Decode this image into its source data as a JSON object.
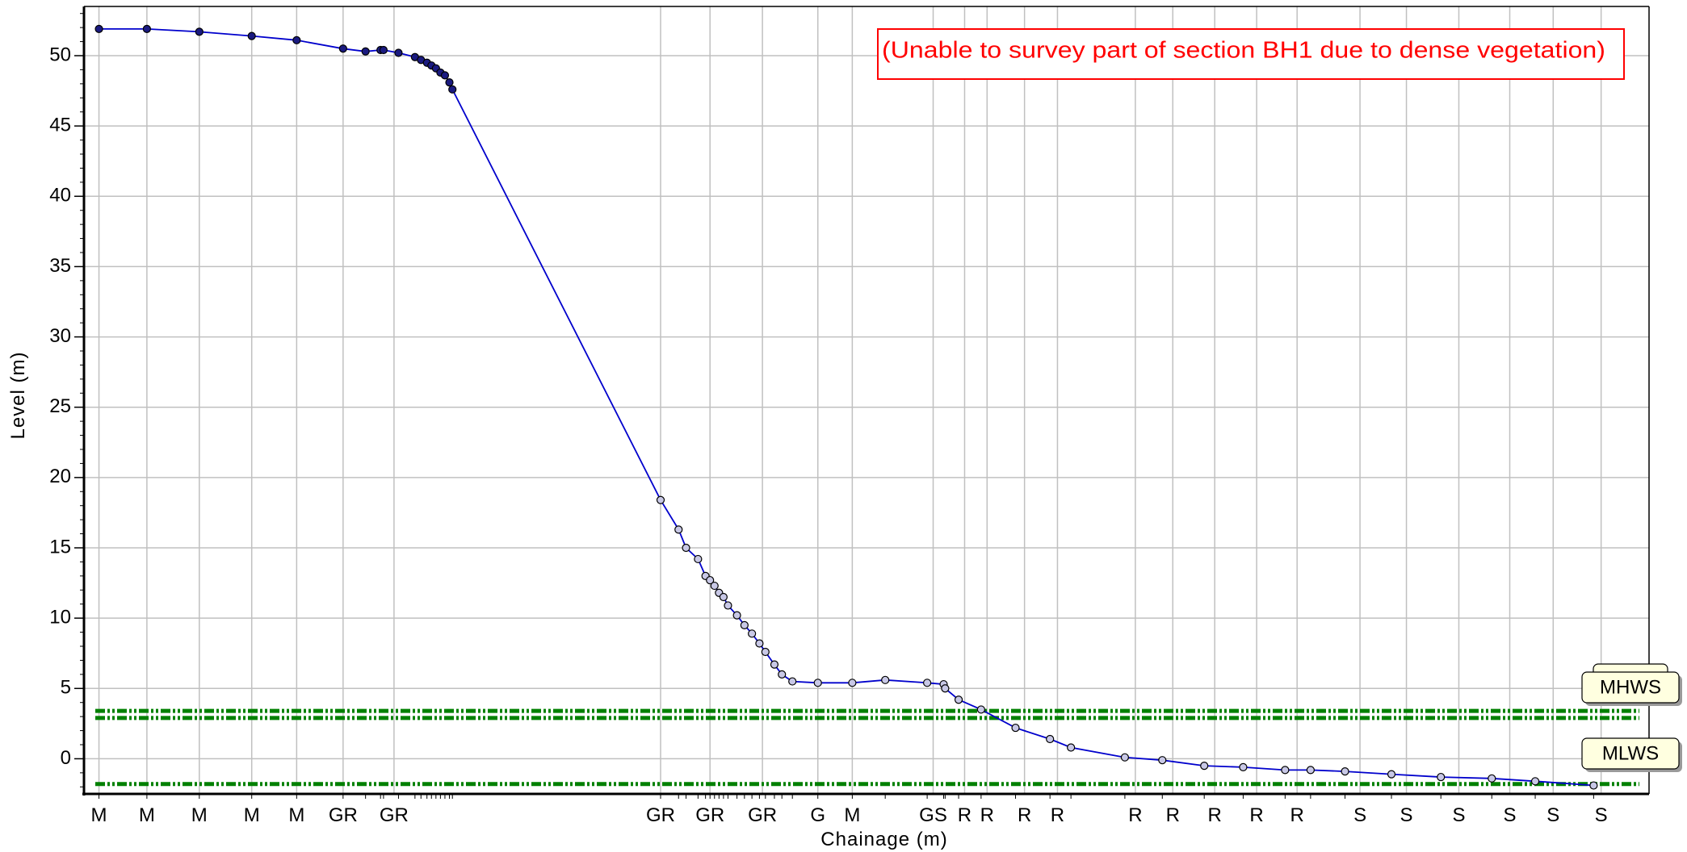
{
  "chart_data": {
    "type": "line",
    "xlabel": "Chainage (m)",
    "ylabel": "Level (m)",
    "ylim": [
      -2.5,
      53.5
    ],
    "xlim": [
      -1,
      103.5
    ],
    "y_ticks": [
      0,
      5,
      10,
      15,
      20,
      25,
      30,
      35,
      40,
      45,
      50
    ],
    "y_tick_labels": [
      "0",
      "5",
      "10",
      "15",
      "20",
      "25",
      "30",
      "35",
      "40",
      "45",
      "50"
    ],
    "grid": true,
    "annotation": "(Unable to survey part of section BH1 due to dense vegetation)",
    "colors": {
      "profile": "#0000cc",
      "marker_fill": "#1a1a80",
      "tide_lines": "#008000",
      "annotation": "#ff0000",
      "tag_fill": "#ffffe0"
    },
    "series": [
      {
        "x": [
          0,
          3.2,
          6.7,
          10.2,
          13.2,
          16.3,
          17.8,
          18.8,
          19.0,
          20.0,
          21.1,
          21.5,
          21.9,
          22.2,
          22.5,
          22.8,
          23.1,
          23.4,
          23.6,
          37.5,
          38.7,
          39.2,
          40.0,
          40.5,
          40.8,
          41.1,
          41.4,
          41.7,
          42.0,
          42.6,
          43.1,
          43.6,
          44.1,
          44.5,
          45.1,
          45.6,
          46.3,
          48.0,
          50.3,
          52.5,
          55.3,
          56.4,
          56.5,
          57.4,
          58.9,
          61.2,
          63.5,
          64.9,
          68.5,
          71.0,
          73.8,
          76.4,
          79.2,
          80.9,
          83.2,
          86.3,
          89.6,
          93.0,
          95.9,
          99.8
        ],
        "y": [
          51.9,
          51.9,
          51.7,
          51.4,
          51.1,
          50.5,
          50.3,
          50.4,
          50.4,
          50.2,
          49.9,
          49.7,
          49.5,
          49.3,
          49.1,
          48.8,
          48.6,
          48.1,
          47.6,
          18.4,
          16.3,
          15.0,
          14.2,
          13.0,
          12.7,
          12.3,
          11.8,
          11.5,
          10.9,
          10.2,
          9.5,
          8.9,
          8.2,
          7.6,
          6.7,
          6.0,
          5.5,
          5.4,
          5.4,
          5.6,
          5.4,
          5.3,
          5.0,
          4.2,
          3.5,
          2.2,
          1.4,
          0.8,
          0.1,
          -0.1,
          -0.5,
          -0.6,
          -0.8,
          -0.8,
          -0.9,
          -1.1,
          -1.3,
          -1.4,
          -1.6,
          -1.9
        ]
      }
    ],
    "reference_lines": [
      {
        "tag": "MHWS",
        "y": 3.4
      },
      {
        "tag": "",
        "y": 2.9
      },
      {
        "tag": "MLWS",
        "y": -1.8
      }
    ],
    "x_category_labels": [
      {
        "label": "M",
        "x": 0
      },
      {
        "label": "M",
        "x": 3.2
      },
      {
        "label": "M",
        "x": 6.7
      },
      {
        "label": "M",
        "x": 10.2
      },
      {
        "label": "M",
        "x": 13.2
      },
      {
        "label": "GR",
        "x": 16.3
      },
      {
        "label": "GR",
        "x": 19.7
      },
      {
        "label": "GR",
        "x": 37.5
      },
      {
        "label": "GR",
        "x": 40.8
      },
      {
        "label": "GR",
        "x": 44.3
      },
      {
        "label": "G",
        "x": 48.0
      },
      {
        "label": "M",
        "x": 50.3
      },
      {
        "label": "GS",
        "x": 55.7
      },
      {
        "label": "R",
        "x": 57.8
      },
      {
        "label": "R",
        "x": 59.3
      },
      {
        "label": "R",
        "x": 61.8
      },
      {
        "label": "R",
        "x": 64.0
      },
      {
        "label": "R",
        "x": 69.2
      },
      {
        "label": "R",
        "x": 71.7
      },
      {
        "label": "R",
        "x": 74.5
      },
      {
        "label": "R",
        "x": 77.3
      },
      {
        "label": "R",
        "x": 80.0
      },
      {
        "label": "S",
        "x": 84.2
      },
      {
        "label": "S",
        "x": 87.3
      },
      {
        "label": "S",
        "x": 90.8
      },
      {
        "label": "S",
        "x": 94.2
      },
      {
        "label": "S",
        "x": 97.1
      },
      {
        "label": "S",
        "x": 100.3
      }
    ]
  }
}
